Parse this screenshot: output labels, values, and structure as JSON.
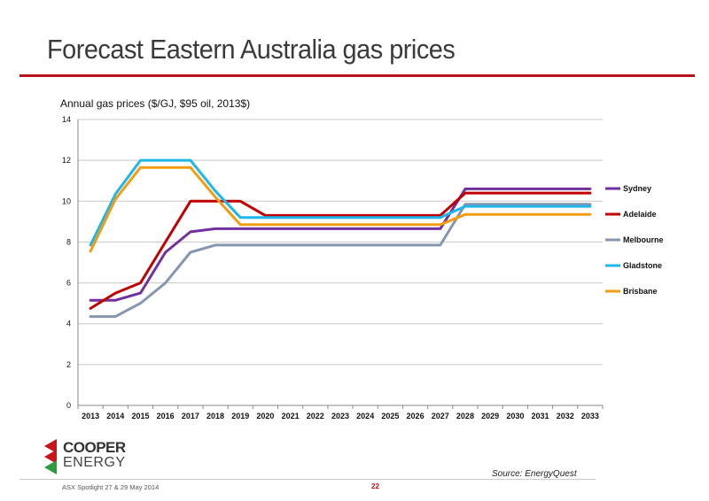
{
  "slide": {
    "title": "Forecast Eastern Australia gas prices",
    "source": "Source: EnergyQuest",
    "footer_text": "ASX Spotlight  27 & 29 May 2014",
    "page_number": "22",
    "logo_line1": "COOPER",
    "logo_line2": "ENERGY",
    "accent_color": "#b5141c"
  },
  "chart_data": {
    "type": "line",
    "title": "Annual gas prices  ($/GJ, $95 oil, 2013$)",
    "xlabel": "",
    "ylabel": "",
    "x": [
      "2013",
      "2014",
      "2015",
      "2016",
      "2017",
      "2018",
      "2019",
      "2020",
      "2021",
      "2022",
      "2023",
      "2024",
      "2025",
      "2026",
      "2027",
      "2028",
      "2029",
      "2030",
      "2031",
      "2032",
      "2033"
    ],
    "ylim": [
      0,
      14
    ],
    "yticks": [
      0,
      2,
      4,
      6,
      8,
      10,
      12,
      14
    ],
    "grid": true,
    "legend_position": "right",
    "series": [
      {
        "name": "Sydney",
        "color": "#7030a0",
        "values": [
          5.15,
          5.15,
          5.5,
          7.5,
          8.5,
          8.65,
          8.65,
          8.65,
          8.65,
          8.65,
          8.65,
          8.65,
          8.65,
          8.65,
          8.65,
          10.6,
          10.6,
          10.6,
          10.6,
          10.6,
          10.6
        ]
      },
      {
        "name": "Adelaide",
        "color": "#c00000",
        "values": [
          4.75,
          5.5,
          6.0,
          8.0,
          10.0,
          10.0,
          10.0,
          9.3,
          9.3,
          9.3,
          9.3,
          9.3,
          9.3,
          9.3,
          9.3,
          10.4,
          10.4,
          10.4,
          10.4,
          10.4,
          10.4
        ]
      },
      {
        "name": "Melbourne",
        "color": "#8496b0",
        "values": [
          4.35,
          4.35,
          5.0,
          6.0,
          7.5,
          7.85,
          7.85,
          7.85,
          7.85,
          7.85,
          7.85,
          7.85,
          7.85,
          7.85,
          7.85,
          9.85,
          9.85,
          9.85,
          9.85,
          9.85,
          9.85
        ]
      },
      {
        "name": "Gladstone",
        "color": "#1fb7e8",
        "values": [
          7.85,
          10.35,
          12.0,
          12.0,
          12.0,
          10.5,
          9.2,
          9.2,
          9.2,
          9.2,
          9.2,
          9.2,
          9.2,
          9.2,
          9.2,
          9.75,
          9.75,
          9.75,
          9.75,
          9.75,
          9.75
        ]
      },
      {
        "name": "Brisbane",
        "color": "#f39c12",
        "values": [
          7.55,
          10.1,
          11.65,
          11.65,
          11.65,
          10.2,
          8.85,
          8.85,
          8.85,
          8.85,
          8.85,
          8.85,
          8.85,
          8.85,
          8.85,
          9.35,
          9.35,
          9.35,
          9.35,
          9.35,
          9.35
        ]
      }
    ]
  }
}
